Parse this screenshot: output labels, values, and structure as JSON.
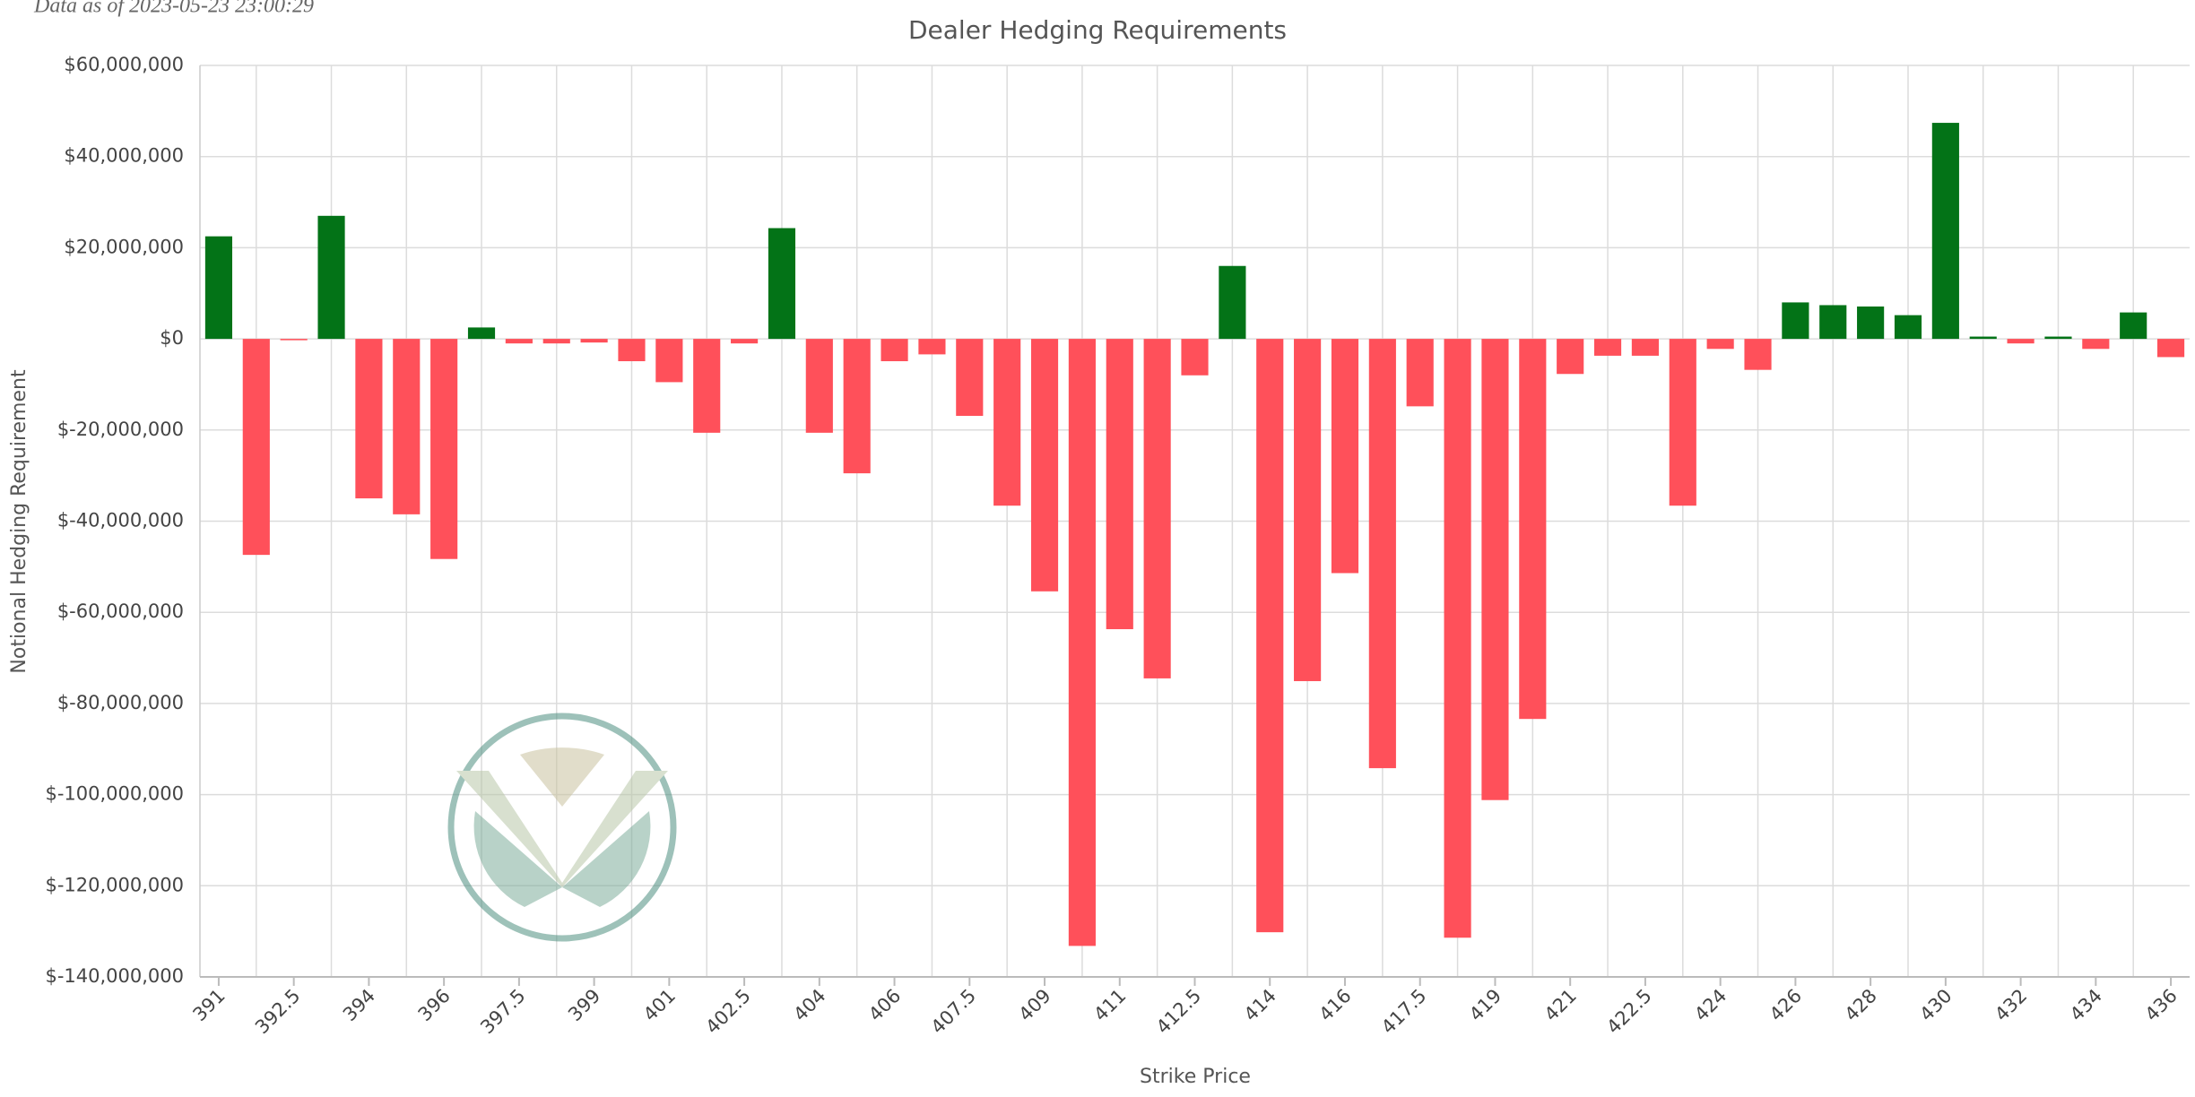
{
  "chart_data": {
    "type": "bar",
    "title": "Dealer Hedging Requirements",
    "subtitle": "Data as of 2023-05-23 23:00:29",
    "x_label": "Strike Price",
    "y_label": "Notional Hedging Requirement",
    "categories": [
      "391",
      null,
      "392.5",
      null,
      "394",
      null,
      "396",
      null,
      "397.5",
      null,
      "399",
      null,
      "401",
      null,
      "402.5",
      null,
      "404",
      null,
      "406",
      null,
      "407.5",
      null,
      "409",
      null,
      "411",
      null,
      "412.5",
      null,
      "414",
      null,
      "416",
      null,
      "417.5",
      null,
      "419",
      null,
      "421",
      null,
      "422.5",
      null,
      "424",
      null,
      "426",
      null,
      "428",
      null,
      "430",
      null,
      "432",
      null,
      "434",
      null,
      "436"
    ],
    "values": [
      22500000,
      -47400000,
      -300000,
      27000000,
      -35000000,
      -38500000,
      -48300000,
      2500000,
      -1000000,
      -1000000,
      -800000,
      -4900000,
      -9500000,
      -20600000,
      -1000000,
      24300000,
      -20600000,
      -29500000,
      -4900000,
      -3400000,
      -16900000,
      -36600000,
      -55400000,
      -133200000,
      -63700000,
      -74500000,
      -8000000,
      16000000,
      -130200000,
      -75100000,
      -51400000,
      -94200000,
      -14800000,
      -131400000,
      -101200000,
      -83400000,
      -7700000,
      -3700000,
      -3700000,
      -36600000,
      -2200000,
      -6800000,
      8000000,
      7400000,
      7100000,
      5200000,
      47400000,
      500000,
      -1000000,
      500000,
      -2200000,
      5800000,
      -4000000
    ],
    "positive_color": "#037317",
    "negative_color": "#ff505a",
    "ylim": [
      -140000000,
      60000000
    ],
    "yticks": [
      {
        "value": -140000000,
        "label": "$-140,000,000"
      },
      {
        "value": -120000000,
        "label": "$-120,000,000"
      },
      {
        "value": -100000000,
        "label": "$-100,000,000"
      },
      {
        "value": -80000000,
        "label": "$-80,000,000"
      },
      {
        "value": -60000000,
        "label": "$-60,000,000"
      },
      {
        "value": -40000000,
        "label": "$-40,000,000"
      },
      {
        "value": -20000000,
        "label": "$-20,000,000"
      },
      {
        "value": 0,
        "label": "$0"
      },
      {
        "value": 20000000,
        "label": "$20,000,000"
      },
      {
        "value": 40000000,
        "label": "$40,000,000"
      },
      {
        "value": 60000000,
        "label": "$60,000,000"
      }
    ],
    "grid": true
  }
}
